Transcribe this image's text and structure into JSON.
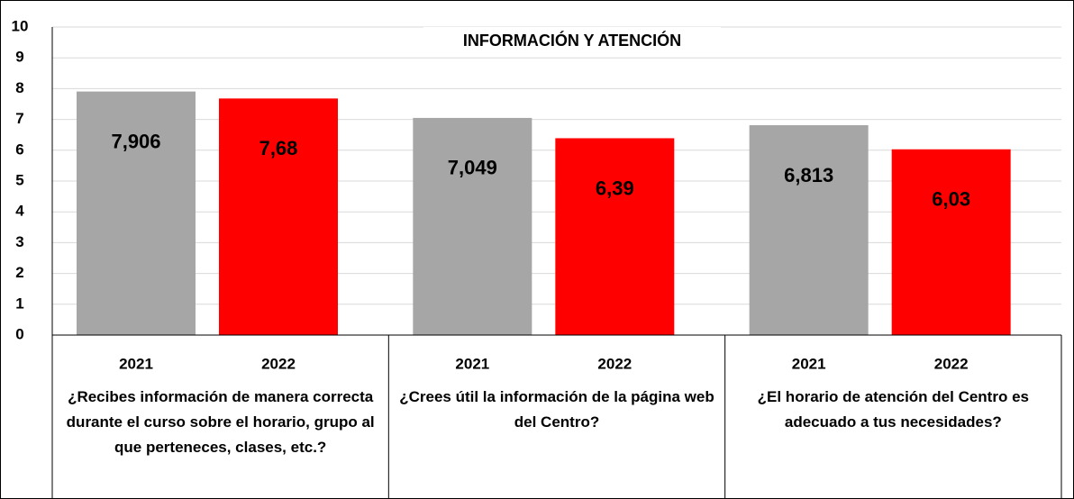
{
  "chart_data": {
    "type": "bar",
    "title": "INFORMACIÓN Y ATENCIÓN",
    "categories": [
      "¿Recibes información de manera correcta durante el curso sobre el horario, grupo al que perteneces, clases, etc.?",
      "¿Crees útil la información de la página web del Centro?",
      "¿El horario de atención del Centro es adecuado a tus necesidades?"
    ],
    "series": [
      {
        "name": "2021",
        "color": "#a6a6a6",
        "values": [
          7.906,
          7.049,
          6.813
        ],
        "value_labels": [
          "7,906",
          "7,049",
          "6,813"
        ]
      },
      {
        "name": "2022",
        "color": "#ff0000",
        "values": [
          7.68,
          6.39,
          6.03
        ],
        "value_labels": [
          "7,68",
          "6,39",
          "6,03"
        ]
      }
    ],
    "ylim": [
      0,
      10
    ],
    "yticks": [
      0,
      1,
      2,
      3,
      4,
      5,
      6,
      7,
      8,
      9,
      10
    ],
    "grid": true
  }
}
